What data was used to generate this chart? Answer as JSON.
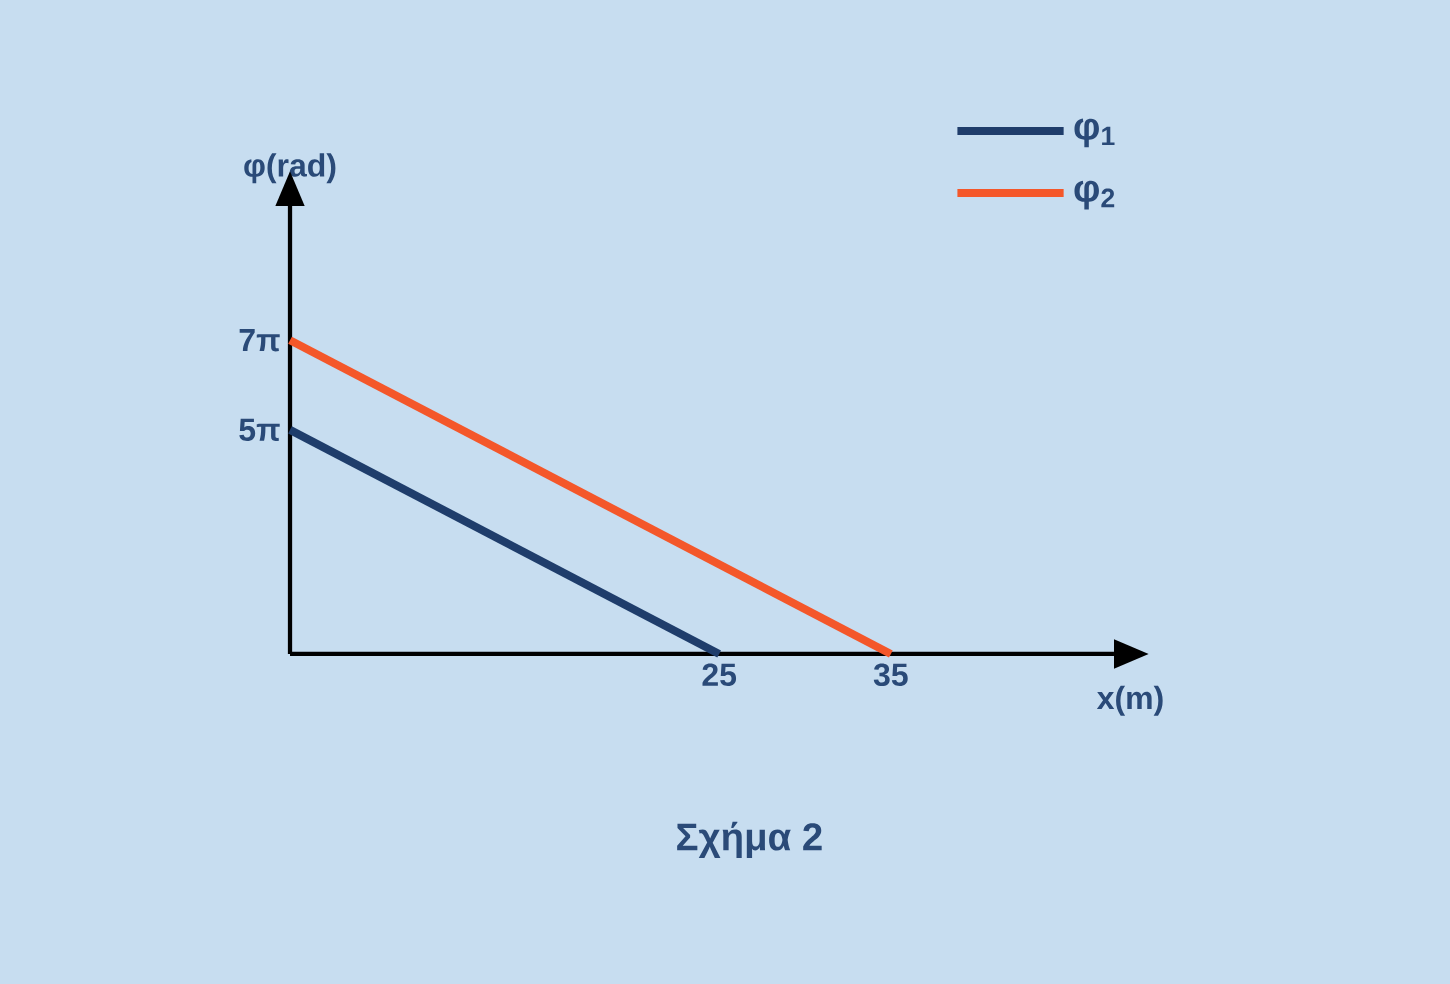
{
  "chart_data": {
    "type": "line",
    "xlabel": "x(m)",
    "ylabel": "φ(rad)",
    "xlim": [
      0,
      48
    ],
    "ylim": [
      0,
      31.4
    ],
    "xticks": [
      25,
      35
    ],
    "yticks": [
      {
        "value": 15.71,
        "label": "5π"
      },
      {
        "value": 21.99,
        "label": "7π"
      }
    ],
    "series": [
      {
        "name": "φ$_{1}$",
        "color": "#1f3d6b",
        "x": [
          0,
          25
        ],
        "values": [
          15.71,
          0
        ]
      },
      {
        "name": "φ$_{2}$",
        "color": "#f4572a",
        "x": [
          0,
          35
        ],
        "values": [
          21.99,
          0
        ]
      }
    ],
    "legend": "top right",
    "marker": "none",
    "line_style": "solid",
    "annotations": [
      "Σχήμα 2"
    ]
  }
}
